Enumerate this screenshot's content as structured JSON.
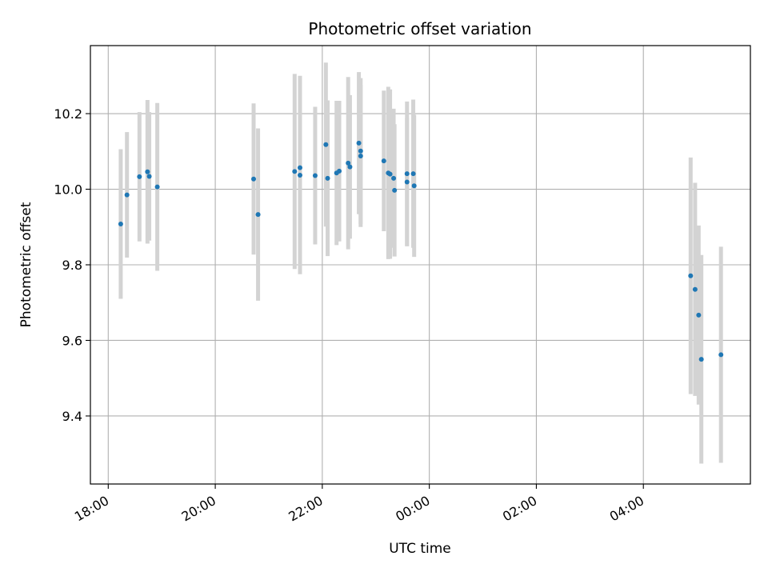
{
  "chart_data": {
    "type": "scatter",
    "title": "Photometric offset variation",
    "xlabel": "UTC time",
    "ylabel": "Photometric offset",
    "x_is_time": true,
    "x_ticks": [
      {
        "value": "18:00",
        "label": "18:00"
      },
      {
        "value": "20:00",
        "label": "20:00"
      },
      {
        "value": "22:00",
        "label": "22:00"
      },
      {
        "value": "24:00",
        "label": "00:00"
      },
      {
        "value": "26:00",
        "label": "02:00"
      },
      {
        "value": "28:00",
        "label": "04:00"
      }
    ],
    "y_ticks": [
      9.4,
      9.6,
      9.8,
      10.0,
      10.2
    ],
    "xlim": [
      "17:40",
      "30:00"
    ],
    "ylim": [
      9.22,
      10.38
    ],
    "grid": true,
    "point_color": "#1f77b4",
    "errorbar_color": "#d3d3d3",
    "points": [
      {
        "x": "18:14",
        "y": 9.908,
        "err": 0.198
      },
      {
        "x": "18:21",
        "y": 9.985,
        "err": 0.166
      },
      {
        "x": "18:35",
        "y": 10.033,
        "err": 0.171
      },
      {
        "x": "18:44",
        "y": 10.046,
        "err": 0.19
      },
      {
        "x": "18:46",
        "y": 10.034,
        "err": 0.17
      },
      {
        "x": "18:55",
        "y": 10.006,
        "err": 0.222
      },
      {
        "x": "20:43",
        "y": 10.027,
        "err": 0.2
      },
      {
        "x": "20:48",
        "y": 9.933,
        "err": 0.228
      },
      {
        "x": "21:29",
        "y": 10.047,
        "err": 0.258
      },
      {
        "x": "21:35",
        "y": 10.037,
        "err": 0.262
      },
      {
        "x": "21:35",
        "y": 10.057,
        "err": 0.243
      },
      {
        "x": "21:52",
        "y": 10.036,
        "err": 0.182
      },
      {
        "x": "22:04",
        "y": 10.118,
        "err": 0.217
      },
      {
        "x": "22:06",
        "y": 10.029,
        "err": 0.206
      },
      {
        "x": "22:16",
        "y": 10.043,
        "err": 0.191
      },
      {
        "x": "22:19",
        "y": 10.048,
        "err": 0.186
      },
      {
        "x": "22:29",
        "y": 10.069,
        "err": 0.228
      },
      {
        "x": "22:31",
        "y": 10.059,
        "err": 0.19
      },
      {
        "x": "22:41",
        "y": 10.122,
        "err": 0.188
      },
      {
        "x": "22:43",
        "y": 10.101,
        "err": 0.193
      },
      {
        "x": "22:43",
        "y": 10.088,
        "err": 0.188
      },
      {
        "x": "23:09",
        "y": 10.075,
        "err": 0.186
      },
      {
        "x": "23:14",
        "y": 10.043,
        "err": 0.228
      },
      {
        "x": "23:16",
        "y": 10.04,
        "err": 0.224
      },
      {
        "x": "23:20",
        "y": 10.029,
        "err": 0.184
      },
      {
        "x": "23:21",
        "y": 9.997,
        "err": 0.175
      },
      {
        "x": "23:35",
        "y": 10.041,
        "err": 0.191
      },
      {
        "x": "23:35",
        "y": 10.019,
        "err": 0.17
      },
      {
        "x": "23:42",
        "y": 10.041,
        "err": 0.196
      },
      {
        "x": "23:43",
        "y": 10.009,
        "err": 0.188
      },
      {
        "x": "28:53",
        "y": 9.771,
        "err": 0.313
      },
      {
        "x": "28:58",
        "y": 9.735,
        "err": 0.282
      },
      {
        "x": "29:02",
        "y": 9.667,
        "err": 0.237
      },
      {
        "x": "29:05",
        "y": 9.55,
        "err": 0.276
      },
      {
        "x": "29:27",
        "y": 9.562,
        "err": 0.286
      }
    ]
  }
}
